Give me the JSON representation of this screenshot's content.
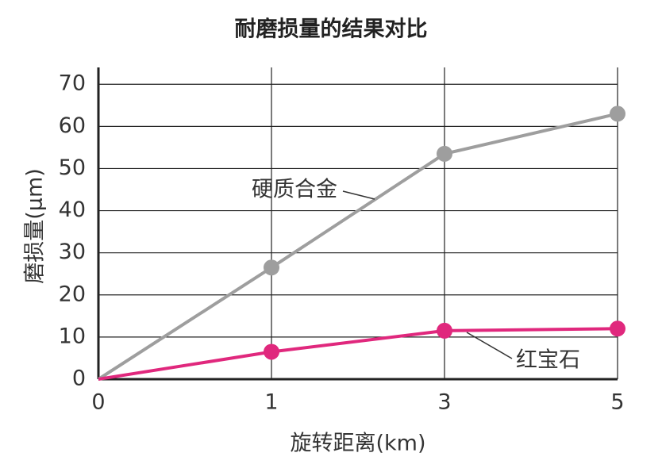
{
  "chart_data": {
    "type": "line",
    "title": "耐磨损量的结果对比",
    "x_label": "旋转距离(km)",
    "y_label": "磨损量(μm)",
    "categories": [
      "0",
      "1",
      "3",
      "5"
    ],
    "series": [
      {
        "name": "硬质合金",
        "color": "#9e9e9e",
        "values": [
          0,
          26.5,
          53.5,
          63
        ]
      },
      {
        "name": "红宝石",
        "color": "#e0287d",
        "values": [
          0,
          6.5,
          11.5,
          12
        ]
      }
    ],
    "ylim": [
      0,
      74
    ],
    "yticks": [
      0,
      10,
      20,
      30,
      40,
      50,
      60,
      70
    ],
    "grid": true
  }
}
